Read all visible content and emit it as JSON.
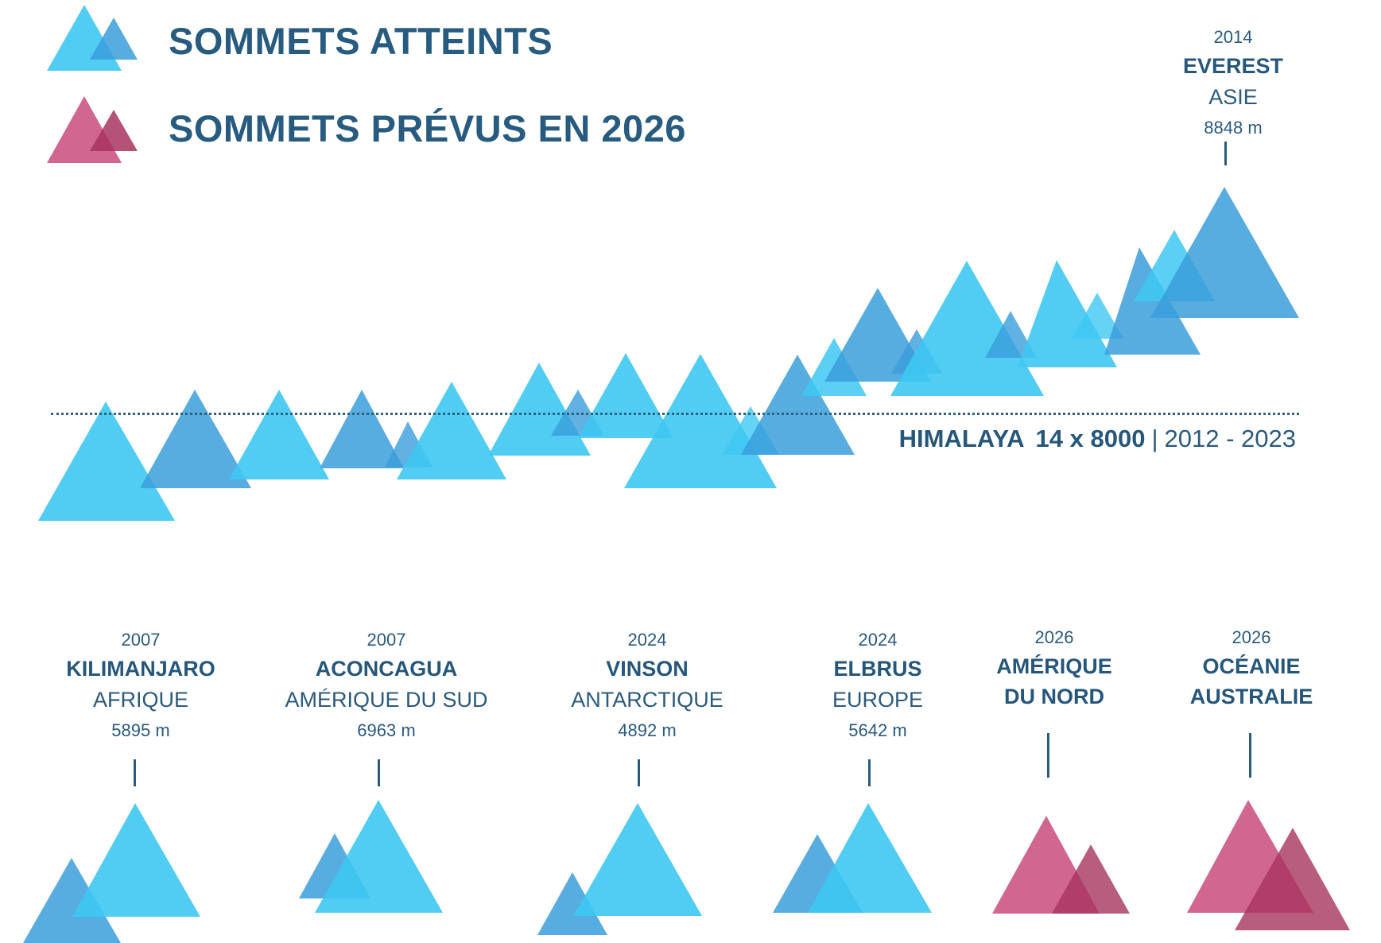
{
  "legend": {
    "reached_label": "SOMMETS ATTEINTS",
    "planned_label": "SOMMETS PRÉVUS EN 2026",
    "reached_color": "#3ec8f2",
    "reached_color_dark": "#3a9edb",
    "planned_color": "#c94b7e",
    "planned_color_dark": "#a8345f"
  },
  "himalaya": {
    "name": "HIMALAYA",
    "count": "14 x 8000",
    "separator": "|",
    "years": "2012 - 2023"
  },
  "everest": {
    "year": "2014",
    "name": "EVEREST",
    "region": "ASIE",
    "altitude": "8848 m"
  },
  "summits": [
    {
      "year": "2007",
      "name": "KILIMANJARO",
      "region": "AFRIQUE",
      "altitude": "5895 m",
      "status": "reached"
    },
    {
      "year": "2007",
      "name": "ACONCAGUA",
      "region": "AMÉRIQUE DU SUD",
      "altitude": "6963 m",
      "status": "reached"
    },
    {
      "year": "2024",
      "name": "VINSON",
      "region": "ANTARCTIQUE",
      "altitude": "4892 m",
      "status": "reached"
    },
    {
      "year": "2024",
      "name": "ELBRUS",
      "region": "EUROPE",
      "altitude": "5642 m",
      "status": "reached"
    },
    {
      "year": "2026",
      "name": "AMÉRIQUE",
      "region": "DU NORD",
      "status": "planned"
    },
    {
      "year": "2026",
      "name": "OCÉANIE",
      "region": "AUSTRALIE",
      "status": "planned"
    }
  ]
}
